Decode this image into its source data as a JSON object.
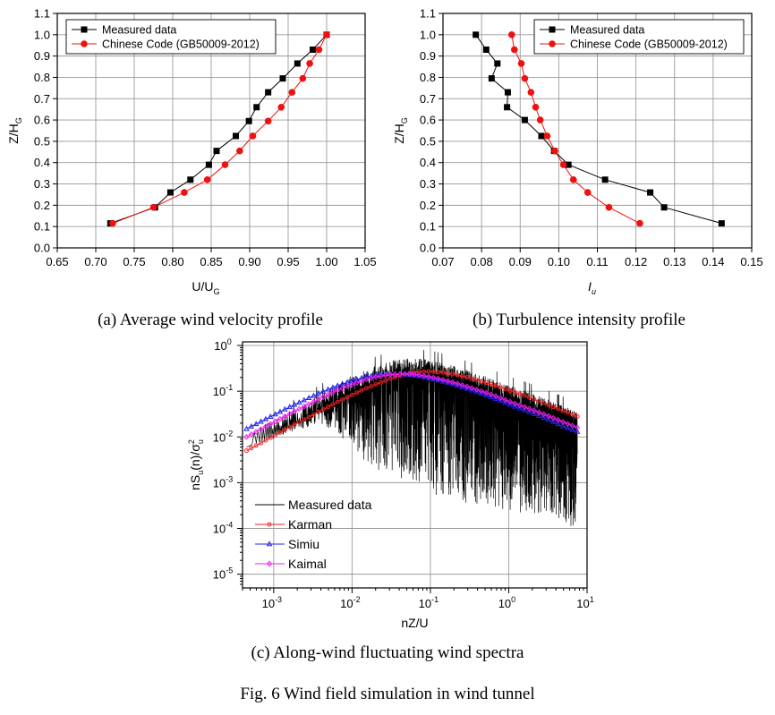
{
  "chart_data": [
    {
      "type": "line",
      "caption": "(a) Average wind velocity profile",
      "xlabel": "U/U",
      "xlabel_sub": "G",
      "ylabel": "Z/H",
      "ylabel_sub": "G",
      "xlim": [
        0.65,
        1.05
      ],
      "ylim": [
        0.0,
        1.1
      ],
      "xticks": [
        "0.65",
        "0.70",
        "0.75",
        "0.80",
        "0.85",
        "0.90",
        "0.95",
        "1.00",
        "1.05"
      ],
      "yticks": [
        "0.0",
        "0.1",
        "0.2",
        "0.3",
        "0.4",
        "0.5",
        "0.6",
        "0.7",
        "0.8",
        "0.9",
        "1.0",
        "1.1"
      ],
      "grid": true,
      "legend_position": "top-left",
      "series": [
        {
          "name": "Measured data",
          "color": "#000000",
          "marker": "square",
          "x": [
            0.719,
            0.777,
            0.797,
            0.823,
            0.847,
            0.857,
            0.882,
            0.899,
            0.909,
            0.924,
            0.943,
            0.962,
            0.982,
            1.0
          ],
          "y": [
            0.115,
            0.19,
            0.26,
            0.32,
            0.39,
            0.455,
            0.525,
            0.595,
            0.66,
            0.73,
            0.795,
            0.865,
            0.93,
            1.0
          ]
        },
        {
          "name": "Chinese Code (GB50009-2012)",
          "color": "#ee1111",
          "marker": "circle",
          "x": [
            0.722,
            0.775,
            0.815,
            0.845,
            0.868,
            0.887,
            0.904,
            0.924,
            0.941,
            0.955,
            0.969,
            0.978,
            0.99,
            1.0
          ],
          "y": [
            0.115,
            0.19,
            0.26,
            0.32,
            0.39,
            0.455,
            0.525,
            0.595,
            0.66,
            0.73,
            0.795,
            0.865,
            0.93,
            1.0
          ]
        }
      ]
    },
    {
      "type": "line",
      "caption": "(b) Turbulence intensity profile",
      "xlabel": "I",
      "xlabel_sub": "u",
      "ylabel": "Z/H",
      "ylabel_sub": "G",
      "xlim": [
        0.07,
        0.15
      ],
      "ylim": [
        0.0,
        1.1
      ],
      "xticks": [
        "0.07",
        "0.08",
        "0.09",
        "0.10",
        "0.11",
        "0.12",
        "0.13",
        "0.14",
        "0.15"
      ],
      "yticks": [
        "0.0",
        "0.1",
        "0.2",
        "0.3",
        "0.4",
        "0.5",
        "0.6",
        "0.7",
        "0.8",
        "0.9",
        "1.0",
        "1.1"
      ],
      "grid": true,
      "legend_position": "top-right",
      "series": [
        {
          "name": "Measured data",
          "color": "#000000",
          "marker": "square",
          "x": [
            0.1422,
            0.1273,
            0.1237,
            0.112,
            0.1025,
            0.0988,
            0.0955,
            0.0912,
            0.0866,
            0.0868,
            0.0826,
            0.0841,
            0.0812,
            0.0785
          ],
          "y": [
            0.115,
            0.19,
            0.26,
            0.32,
            0.39,
            0.455,
            0.525,
            0.6,
            0.66,
            0.73,
            0.795,
            0.865,
            0.93,
            1.0
          ]
        },
        {
          "name": "Chinese Code (GB50009-2012)",
          "color": "#ee1111",
          "marker": "circle",
          "x": [
            0.121,
            0.113,
            0.1075,
            0.1038,
            0.1012,
            0.099,
            0.097,
            0.0952,
            0.094,
            0.0928,
            0.0912,
            0.0903,
            0.0885,
            0.0878
          ],
          "y": [
            0.115,
            0.19,
            0.26,
            0.32,
            0.39,
            0.455,
            0.525,
            0.6,
            0.66,
            0.73,
            0.795,
            0.865,
            0.93,
            1.0
          ]
        }
      ]
    },
    {
      "type": "line",
      "caption": "(c) Along-wind fluctuating wind spectra",
      "xlabel": "nZ/U",
      "ylabel": "nS",
      "xscale": "log",
      "yscale": "log",
      "xlim": [
        0.0004,
        10
      ],
      "ylim": [
        5e-06,
        1.2
      ],
      "xticks": [
        {
          "base": "10",
          "exp": "-3",
          "value": 0.001
        },
        {
          "base": "10",
          "exp": "-2",
          "value": 0.01
        },
        {
          "base": "10",
          "exp": "-1",
          "value": 0.1
        },
        {
          "base": "10",
          "exp": "0",
          "value": 1
        },
        {
          "base": "10",
          "exp": "1",
          "value": 10
        }
      ],
      "yticks": [
        {
          "base": "10",
          "exp": "0",
          "value": 1
        },
        {
          "base": "10",
          "exp": "-1",
          "value": 0.1
        },
        {
          "base": "10",
          "exp": "-2",
          "value": 0.01
        },
        {
          "base": "10",
          "exp": "-3",
          "value": 0.001
        },
        {
          "base": "10",
          "exp": "-4",
          "value": 0.0001
        },
        {
          "base": "10",
          "exp": "-5",
          "value": 1e-05
        }
      ],
      "grid": true,
      "legend_position": "bottom-left",
      "series": [
        {
          "name": "Measured data",
          "color": "#000000",
          "marker": "none",
          "x": [
            0.00045,
            0.001,
            0.002,
            0.004,
            0.007,
            0.01,
            0.02,
            0.03,
            0.05,
            0.1,
            0.2,
            0.5,
            1,
            2,
            4,
            7.5
          ],
          "y": [
            0.006,
            0.011,
            0.02,
            0.04,
            0.07,
            0.1,
            0.16,
            0.21,
            0.24,
            0.22,
            0.16,
            0.095,
            0.06,
            0.04,
            0.025,
            0.016
          ],
          "scatter_low": [
            0.006,
            0.009,
            0.014,
            0.02,
            0.01,
            0.005,
            0.002,
            0.0015,
            0.001,
            0.0006,
            0.0004,
            0.0003,
            0.00025,
            0.0002,
            0.00015,
            0.0001
          ]
        },
        {
          "name": "Karman",
          "color": "#ee2222",
          "marker": "circle",
          "x": [
            0.00045,
            0.0007,
            0.001,
            0.0015,
            0.002,
            0.003,
            0.005,
            0.007,
            0.01,
            0.015,
            0.02,
            0.03,
            0.05,
            0.07,
            0.1,
            0.15,
            0.2,
            0.3,
            0.5,
            0.7,
            1,
            1.5,
            2,
            3,
            5,
            7.5
          ],
          "y": [
            0.005,
            0.0075,
            0.0105,
            0.0155,
            0.02,
            0.029,
            0.046,
            0.062,
            0.083,
            0.115,
            0.14,
            0.185,
            0.24,
            0.265,
            0.27,
            0.255,
            0.235,
            0.2,
            0.155,
            0.13,
            0.105,
            0.083,
            0.069,
            0.053,
            0.037,
            0.028
          ]
        },
        {
          "name": "Simiu",
          "color": "#2222ee",
          "marker": "triangle",
          "x": [
            0.00045,
            0.0007,
            0.001,
            0.0015,
            0.002,
            0.003,
            0.005,
            0.007,
            0.01,
            0.015,
            0.02,
            0.03,
            0.05,
            0.07,
            0.1,
            0.15,
            0.2,
            0.3,
            0.5,
            0.7,
            1,
            1.5,
            2,
            3,
            5,
            7.5
          ],
          "y": [
            0.015,
            0.022,
            0.03,
            0.043,
            0.054,
            0.075,
            0.11,
            0.138,
            0.17,
            0.205,
            0.225,
            0.24,
            0.235,
            0.215,
            0.19,
            0.16,
            0.14,
            0.112,
            0.083,
            0.067,
            0.052,
            0.04,
            0.033,
            0.025,
            0.017,
            0.013
          ]
        },
        {
          "name": "Kaimal",
          "color": "#ee22ee",
          "marker": "diamond",
          "x": [
            0.00045,
            0.0007,
            0.001,
            0.0015,
            0.002,
            0.003,
            0.005,
            0.007,
            0.01,
            0.015,
            0.02,
            0.03,
            0.05,
            0.07,
            0.1,
            0.15,
            0.2,
            0.3,
            0.5,
            0.7,
            1,
            1.5,
            2,
            3,
            5,
            7.5
          ],
          "y": [
            0.01,
            0.015,
            0.021,
            0.03,
            0.039,
            0.055,
            0.085,
            0.11,
            0.14,
            0.18,
            0.205,
            0.23,
            0.24,
            0.228,
            0.205,
            0.175,
            0.155,
            0.125,
            0.094,
            0.077,
            0.06,
            0.047,
            0.039,
            0.03,
            0.021,
            0.016
          ]
        }
      ]
    }
  ],
  "figure_caption": "Fig. 6 Wind field simulation in wind tunnel",
  "spectrum_ylabel_parts": {
    "n": "nS",
    "sub_u": "u",
    "n_paren": "(n)/σ",
    "sup2": "2",
    "sub_u2": "u"
  }
}
